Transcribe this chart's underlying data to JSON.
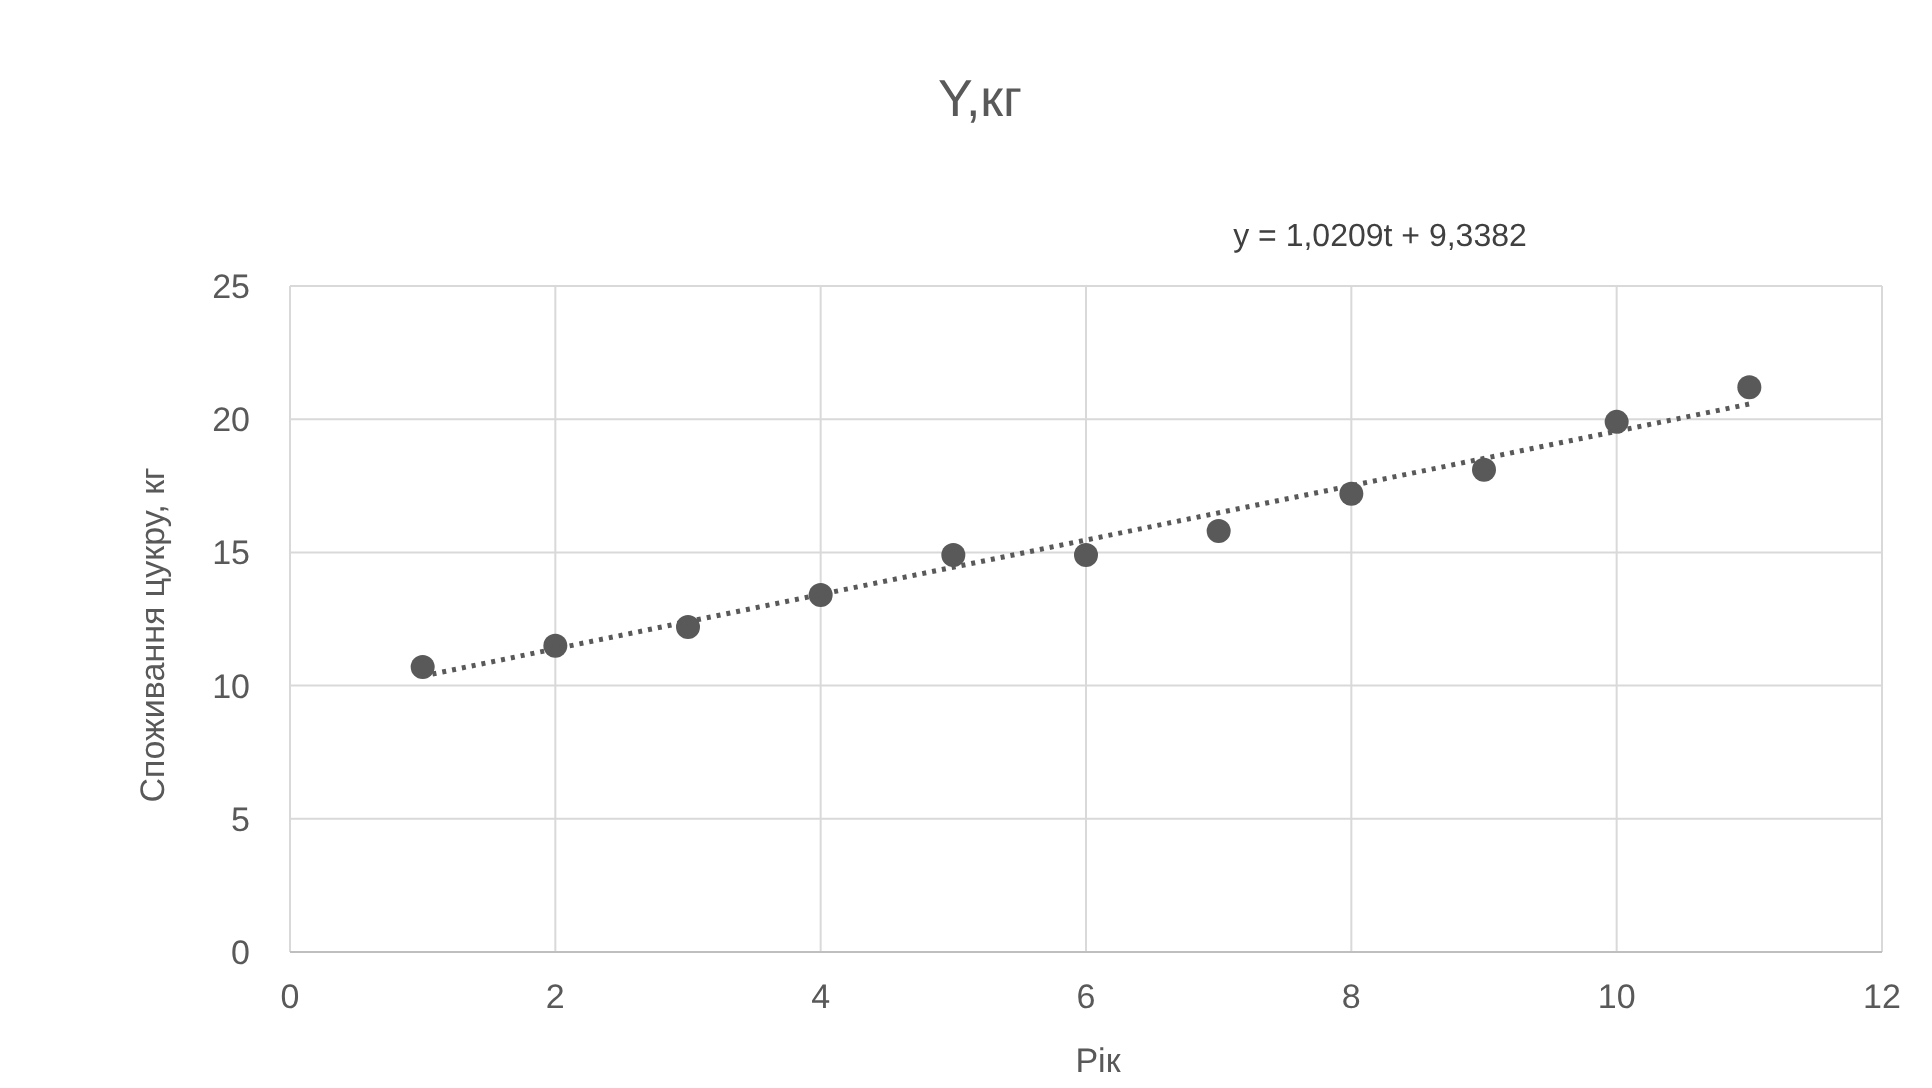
{
  "chart_data": {
    "type": "scatter",
    "title": "Y,кг",
    "xlabel": "Рік",
    "ylabel": "Споживання цукру, кг",
    "annotations": [
      "y = 1,0209t + 9,3382"
    ],
    "xlim": [
      0,
      12
    ],
    "xticks": [
      0,
      2,
      4,
      6,
      8,
      10,
      12
    ],
    "ylim": [
      0,
      25
    ],
    "yticks": [
      0,
      5,
      10,
      15,
      20,
      25
    ],
    "grid": true,
    "marker": "circle",
    "series": [
      {
        "color": "#595959",
        "x": [
          1,
          2,
          3,
          4,
          5,
          6,
          7,
          8,
          9,
          10,
          11
        ],
        "values": [
          10.7,
          11.5,
          12.2,
          13.4,
          14.9,
          14.9,
          15.8,
          17.2,
          18.1,
          19.9,
          21.2
        ]
      },
      {
        "type": "line",
        "color": "#595959",
        "line_style": "dotted",
        "marker": "none",
        "x": [
          1,
          11
        ],
        "values": [
          10.36,
          20.57
        ]
      }
    ]
  }
}
